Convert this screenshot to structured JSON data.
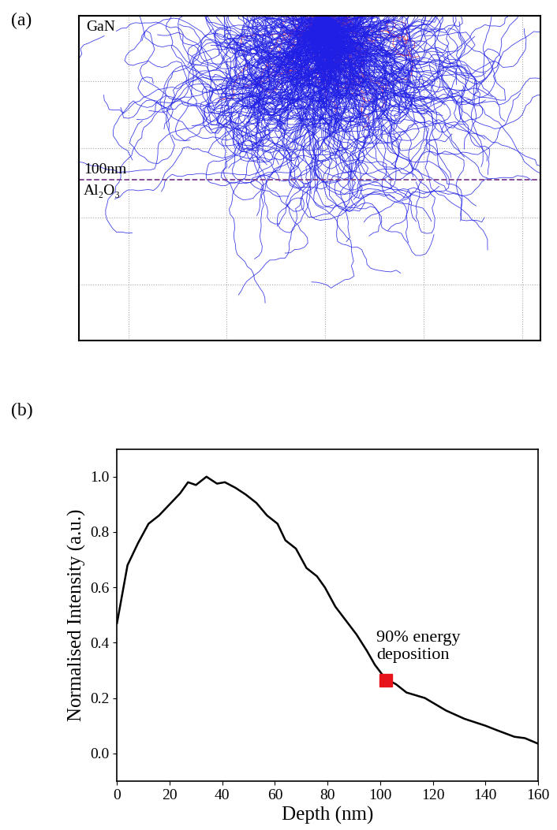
{
  "chart_data": [
    {
      "type": "trajectory",
      "panel_label": "(a)",
      "layer_labels": [
        "GaN",
        "100nm",
        "Al₂O₃"
      ],
      "interface_depth": 100,
      "interface_color": "#7b3f8c",
      "colors": [
        "#1f1fe6",
        "#e61f1f"
      ],
      "xlim": [
        -150,
        131
      ],
      "ylim": [
        198,
        0
      ],
      "xticks": [
        -120,
        -60,
        0,
        60,
        120
      ],
      "yticks": [
        40,
        81,
        123,
        164
      ],
      "grid": true,
      "tick_labels": false
    },
    {
      "type": "line",
      "panel_label": "(b)",
      "x_label": "Depth (nm)",
      "y_label": "Normalised Intensity (a.u.)",
      "x": [
        0,
        4,
        8,
        12,
        16,
        20,
        24,
        27,
        30,
        34,
        38,
        41,
        45,
        49,
        53,
        57,
        61,
        64,
        68,
        72,
        76,
        79,
        83,
        87,
        91,
        95,
        98,
        102,
        106,
        110,
        117,
        125,
        132,
        140,
        144,
        151,
        155,
        160
      ],
      "values": [
        0.47,
        0.68,
        0.76,
        0.83,
        0.86,
        0.9,
        0.94,
        0.98,
        0.97,
        1.0,
        0.975,
        0.98,
        0.96,
        0.935,
        0.905,
        0.86,
        0.83,
        0.77,
        0.74,
        0.67,
        0.64,
        0.6,
        0.53,
        0.48,
        0.43,
        0.37,
        0.32,
        0.27,
        0.25,
        0.22,
        0.2,
        0.155,
        0.125,
        0.1,
        0.085,
        0.06,
        0.055,
        0.035
      ],
      "color": "#000000",
      "marker_point": {
        "x": 102,
        "y": 0.265,
        "label": "90% energy\ndeposition",
        "color": "#e8141b",
        "marker": "square"
      },
      "xlim": [
        0,
        160
      ],
      "ylim": [
        -0.1,
        1.1
      ],
      "xticks": [
        0,
        20,
        40,
        60,
        80,
        100,
        120,
        140,
        160
      ],
      "yticks": [
        {
          "value": 0,
          "label": "0.0"
        },
        {
          "value": 0.2,
          "label": "0.2"
        },
        {
          "value": 0.4,
          "label": "0.4"
        },
        {
          "value": 0.6,
          "label": "0.6"
        },
        {
          "value": 0.8,
          "label": "0.8"
        },
        {
          "value": 1.0,
          "label": "1.0"
        }
      ],
      "grid": false
    }
  ]
}
